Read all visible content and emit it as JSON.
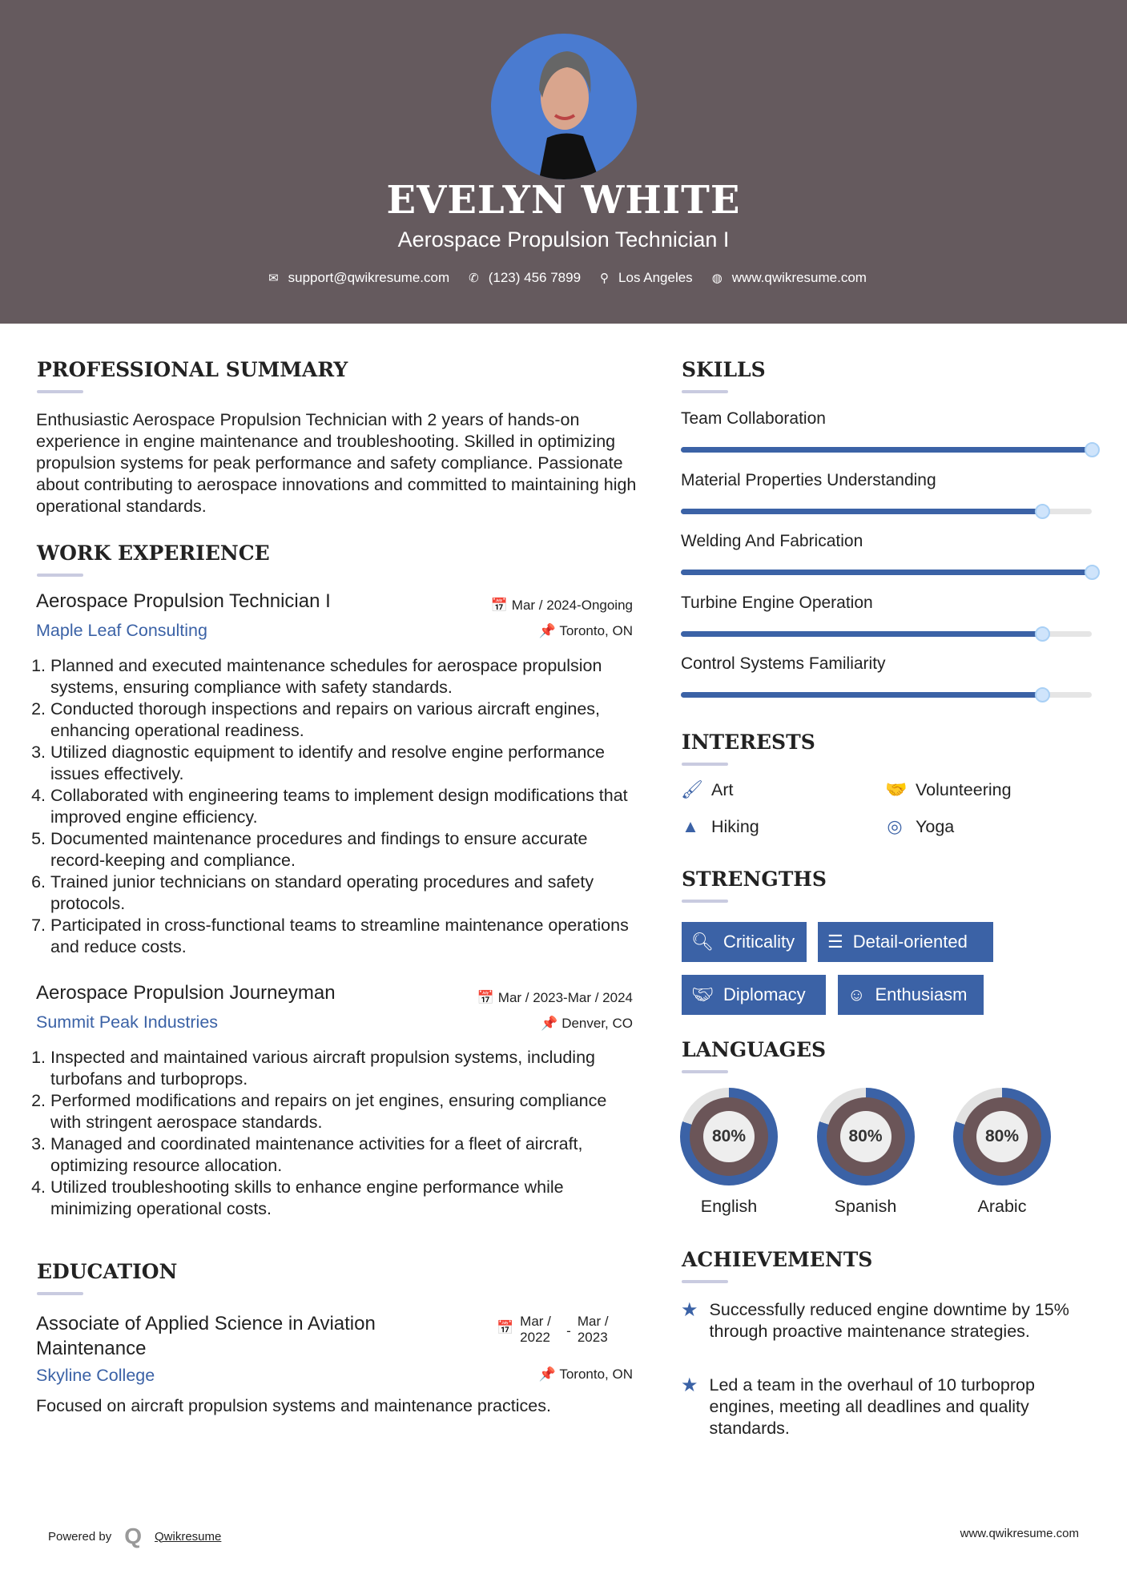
{
  "header": {
    "name": "EVELYN WHITE",
    "title": "Aerospace Propulsion Technician I",
    "email": "support@qwikresume.com",
    "phone": "(123) 456 7899",
    "location": "Los Angeles",
    "website": "www.qwikresume.com"
  },
  "summary": {
    "heading": "PROFESSIONAL SUMMARY",
    "text": "Enthusiastic Aerospace Propulsion Technician with 2 years of hands-on experience in engine maintenance and troubleshooting. Skilled in optimizing propulsion systems for peak performance and safety compliance. Passionate about contributing to aerospace innovations and committed to maintaining high operational standards."
  },
  "experience": {
    "heading": "WORK EXPERIENCE",
    "jobs": [
      {
        "title": "Aerospace Propulsion Technician I",
        "company": "Maple Leaf Consulting",
        "date": "Mar / 2024-Ongoing",
        "location": "Toronto, ON",
        "items": [
          "Planned and executed maintenance schedules for aerospace propulsion systems, ensuring compliance with safety standards.",
          "Conducted thorough inspections and repairs on various aircraft engines, enhancing operational readiness.",
          "Utilized diagnostic equipment to identify and resolve engine performance issues effectively.",
          "Collaborated with engineering teams to implement design modifications that improved engine efficiency.",
          "Documented maintenance procedures and findings to ensure accurate record-keeping and compliance.",
          "Trained junior technicians on standard operating procedures and safety protocols.",
          "Participated in cross-functional teams to streamline maintenance operations and reduce costs."
        ]
      },
      {
        "title": "Aerospace Propulsion Journeyman",
        "company": "Summit Peak Industries",
        "date": "Mar / 2023-Mar / 2024",
        "location": "Denver, CO",
        "items": [
          "Inspected and maintained various aircraft propulsion systems, including turbofans and turboprops.",
          "Performed modifications and repairs on jet engines, ensuring compliance with stringent aerospace standards.",
          "Managed and coordinated maintenance activities for a fleet of aircraft, optimizing resource allocation.",
          "Utilized troubleshooting skills to enhance engine performance while minimizing operational costs."
        ]
      }
    ]
  },
  "education": {
    "heading": "EDUCATION",
    "degree": "Associate of Applied Science in Aviation Maintenance",
    "school": "Skyline College",
    "start": "Mar / 2022",
    "end": "Mar / 2023",
    "separator": "-",
    "location": "Toronto, ON",
    "description": "Focused on aircraft propulsion systems and maintenance practices."
  },
  "skills": {
    "heading": "SKILLS",
    "items": [
      {
        "name": "Team Collaboration",
        "level": 1.0
      },
      {
        "name": "Material Properties Understanding",
        "level": 0.88
      },
      {
        "name": "Welding And Fabrication",
        "level": 1.0
      },
      {
        "name": "Turbine Engine Operation",
        "level": 0.88
      },
      {
        "name": "Control Systems Familiarity",
        "level": 0.88
      }
    ]
  },
  "interests": {
    "heading": "INTERESTS",
    "items": [
      {
        "label": "Art",
        "icon": "paintbrush-icon"
      },
      {
        "label": "Volunteering",
        "icon": "handshake-icon"
      },
      {
        "label": "Hiking",
        "icon": "tree-icon"
      },
      {
        "label": "Yoga",
        "icon": "lifebuoy-icon"
      }
    ]
  },
  "strengths": {
    "heading": "STRENGTHS",
    "items": [
      {
        "label": "Criticality",
        "icon": "search-icon"
      },
      {
        "label": "Detail-oriented",
        "icon": "list-icon"
      },
      {
        "label": "Diplomacy",
        "icon": "handshake-icon"
      },
      {
        "label": "Enthusiasm",
        "icon": "smile-icon"
      }
    ]
  },
  "languages": {
    "heading": "LANGUAGES",
    "items": [
      {
        "name": "English",
        "percent": 80,
        "label": "80%"
      },
      {
        "name": "Spanish",
        "percent": 80,
        "label": "80%"
      },
      {
        "name": "Arabic",
        "percent": 80,
        "label": "80%"
      }
    ]
  },
  "achievements": {
    "heading": "ACHIEVEMENTS",
    "items": [
      "Successfully reduced engine downtime by 15% through proactive maintenance strategies.",
      "Led a team in the overhaul of 10 turboprop engines, meeting all deadlines and quality standards."
    ]
  },
  "footer": {
    "powered_by": "Powered by",
    "brand": "Qwikresume",
    "website": "www.qwikresume.com"
  },
  "colors": {
    "header_bg": "#655a5e",
    "accent": "#3b62a6",
    "photo_bg": "#4a7bd0"
  }
}
